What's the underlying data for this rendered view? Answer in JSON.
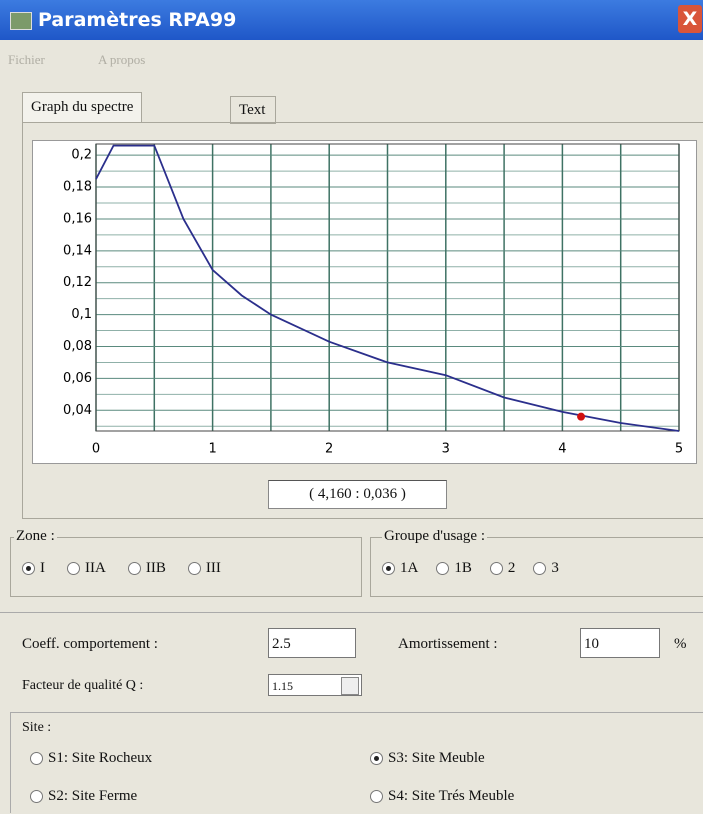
{
  "window": {
    "title": "Paramètres RPA99",
    "close": "X"
  },
  "menu": [
    "Fichier",
    "A propos"
  ],
  "tabs": {
    "items": [
      "Graph du spectre",
      "Text"
    ],
    "selected": 0
  },
  "chart_data": {
    "type": "line",
    "x": [
      0,
      0.15,
      0.5,
      0.75,
      1,
      1.25,
      1.5,
      2,
      2.5,
      3,
      3.5,
      4,
      4.5,
      5
    ],
    "series": [
      {
        "color": "#2b2f8c",
        "values": [
          0.185,
          0.206,
          0.206,
          0.16,
          0.128,
          0.112,
          0.1,
          0.083,
          0.07,
          0.062,
          0.048,
          0.039,
          0.032,
          0.027
        ]
      }
    ],
    "xlim": [
      0,
      5
    ],
    "xticks": [
      0,
      1,
      2,
      3,
      4,
      5
    ],
    "x_minor_ticks": [
      0.5,
      1.5,
      2.5,
      3.5,
      4.5
    ],
    "ylim": [
      0.027,
      0.207
    ],
    "yticks": [
      {
        "value": 0.04,
        "label": "0,04"
      },
      {
        "value": 0.06,
        "label": "0,06"
      },
      {
        "value": 0.08,
        "label": "0,08"
      },
      {
        "value": 0.1,
        "label": "0,1"
      },
      {
        "value": 0.12,
        "label": "0,12"
      },
      {
        "value": 0.14,
        "label": "0,14"
      },
      {
        "value": 0.16,
        "label": "0,16"
      },
      {
        "value": 0.18,
        "label": "0,18"
      },
      {
        "value": 0.2,
        "label": "0,2"
      }
    ],
    "y_minor_ticks": [
      0.03,
      0.05,
      0.07,
      0.09,
      0.11,
      0.13,
      0.15,
      0.17,
      0.19
    ],
    "grid": true,
    "marker": {
      "x": 4.16,
      "y": 0.036,
      "color": "#d01010"
    }
  },
  "readout": "( 4,160 : 0,036 )",
  "zone": {
    "label": "Zone :",
    "options": [
      "I",
      "IIA",
      "IIB",
      "III"
    ],
    "selected": 0
  },
  "usage": {
    "label": "Groupe d'usage :",
    "options": [
      "1A",
      "1B",
      "2",
      "3"
    ],
    "selected": 0
  },
  "coeff": {
    "label": "Coeff. comportement :",
    "value": "2.5"
  },
  "amort": {
    "label": "Amortissement :",
    "value": "10",
    "unit": "%"
  },
  "quality": {
    "label": "Facteur de qualité Q :",
    "value": "1.15"
  },
  "site": {
    "label": "Site :",
    "options": [
      "S1: Site Rocheux",
      "S3: Site Meuble",
      "S2: Site Ferme",
      "S4: Site Trés Meuble"
    ],
    "selected": 1
  }
}
